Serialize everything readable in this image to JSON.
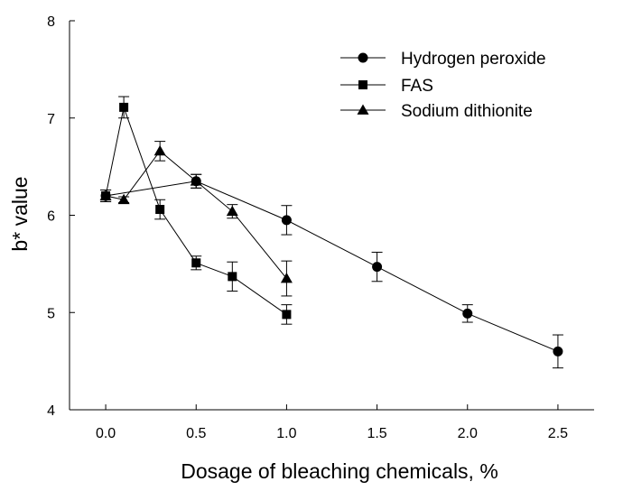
{
  "chart_data": {
    "type": "line",
    "xlabel": "Dosage of bleaching chemicals, %",
    "ylabel": "b* value",
    "xlim": [
      -0.2,
      2.7
    ],
    "ylim": [
      4,
      8
    ],
    "x_ticks": [
      0.0,
      0.5,
      1.0,
      1.5,
      2.0,
      2.5
    ],
    "x_tick_labels": [
      "0.0",
      "0.5",
      "1.0",
      "1.5",
      "2.0",
      "2.5"
    ],
    "y_ticks": [
      4,
      5,
      6,
      7,
      8
    ],
    "y_tick_labels": [
      "4",
      "5",
      "6",
      "7",
      "8"
    ],
    "grid": false,
    "legend_position": "top-right",
    "series": [
      {
        "name": "Hydrogen peroxide",
        "marker": "circle",
        "points": [
          {
            "x": 0.0,
            "y": 6.2,
            "err": 0.06
          },
          {
            "x": 0.5,
            "y": 6.35,
            "err": 0.07
          },
          {
            "x": 1.0,
            "y": 5.95,
            "err": 0.15
          },
          {
            "x": 1.5,
            "y": 5.47,
            "err": 0.15
          },
          {
            "x": 2.0,
            "y": 4.99,
            "err": 0.09
          },
          {
            "x": 2.5,
            "y": 4.6,
            "err": 0.17
          }
        ]
      },
      {
        "name": "FAS",
        "marker": "square",
        "points": [
          {
            "x": 0.0,
            "y": 6.2,
            "err": 0.06
          },
          {
            "x": 0.1,
            "y": 7.11,
            "err": 0.11
          },
          {
            "x": 0.3,
            "y": 6.06,
            "err": 0.1
          },
          {
            "x": 0.5,
            "y": 5.51,
            "err": 0.07
          },
          {
            "x": 0.7,
            "y": 5.37,
            "err": 0.15
          },
          {
            "x": 1.0,
            "y": 4.98,
            "err": 0.1
          }
        ]
      },
      {
        "name": "Sodium dithionite",
        "marker": "triangle",
        "points": [
          {
            "x": 0.0,
            "y": 6.2,
            "err": 0.06
          },
          {
            "x": 0.1,
            "y": 6.16,
            "err": 0.03
          },
          {
            "x": 0.3,
            "y": 6.66,
            "err": 0.1
          },
          {
            "x": 0.5,
            "y": 6.35,
            "err": 0.07
          },
          {
            "x": 0.7,
            "y": 6.04,
            "err": 0.07
          },
          {
            "x": 1.0,
            "y": 5.35,
            "err": 0.18
          }
        ]
      }
    ]
  }
}
